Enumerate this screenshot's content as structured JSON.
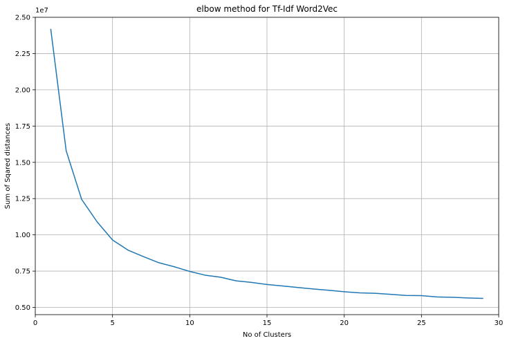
{
  "chart_data": {
    "type": "line",
    "title": "elbow method for Tf-Idf Word2Vec",
    "xlabel": "No of Clusters",
    "ylabel": "Sum of Sqared distances",
    "y_offset_label": "1e7",
    "xlim": [
      0,
      30
    ],
    "ylim": [
      0.45,
      2.5
    ],
    "xticks": [
      0,
      5,
      10,
      15,
      20,
      25,
      30
    ],
    "xtick_labels": [
      "0",
      "5",
      "10",
      "15",
      "20",
      "25",
      "30"
    ],
    "yticks": [
      0.5,
      0.75,
      1.0,
      1.25,
      1.5,
      1.75,
      2.0,
      2.25,
      2.5
    ],
    "ytick_labels": [
      "0.50",
      "0.75",
      "1.00",
      "1.25",
      "1.50",
      "1.75",
      "2.00",
      "2.25",
      "2.50"
    ],
    "grid": true,
    "line_color": "#1f77b4",
    "series": [
      {
        "x": [
          1,
          2,
          3,
          4,
          5,
          6,
          7,
          8,
          9,
          10,
          11,
          12,
          13,
          14,
          15,
          16,
          17,
          18,
          19,
          20,
          21,
          22,
          23,
          24,
          25,
          26,
          27,
          28,
          29
        ],
        "values": [
          2.42,
          1.58,
          1.245,
          1.09,
          0.965,
          0.895,
          0.85,
          0.808,
          0.78,
          0.748,
          0.722,
          0.708,
          0.683,
          0.672,
          0.658,
          0.648,
          0.637,
          0.627,
          0.618,
          0.608,
          0.6,
          0.597,
          0.59,
          0.582,
          0.581,
          0.572,
          0.57,
          0.565,
          0.562
        ]
      }
    ]
  }
}
